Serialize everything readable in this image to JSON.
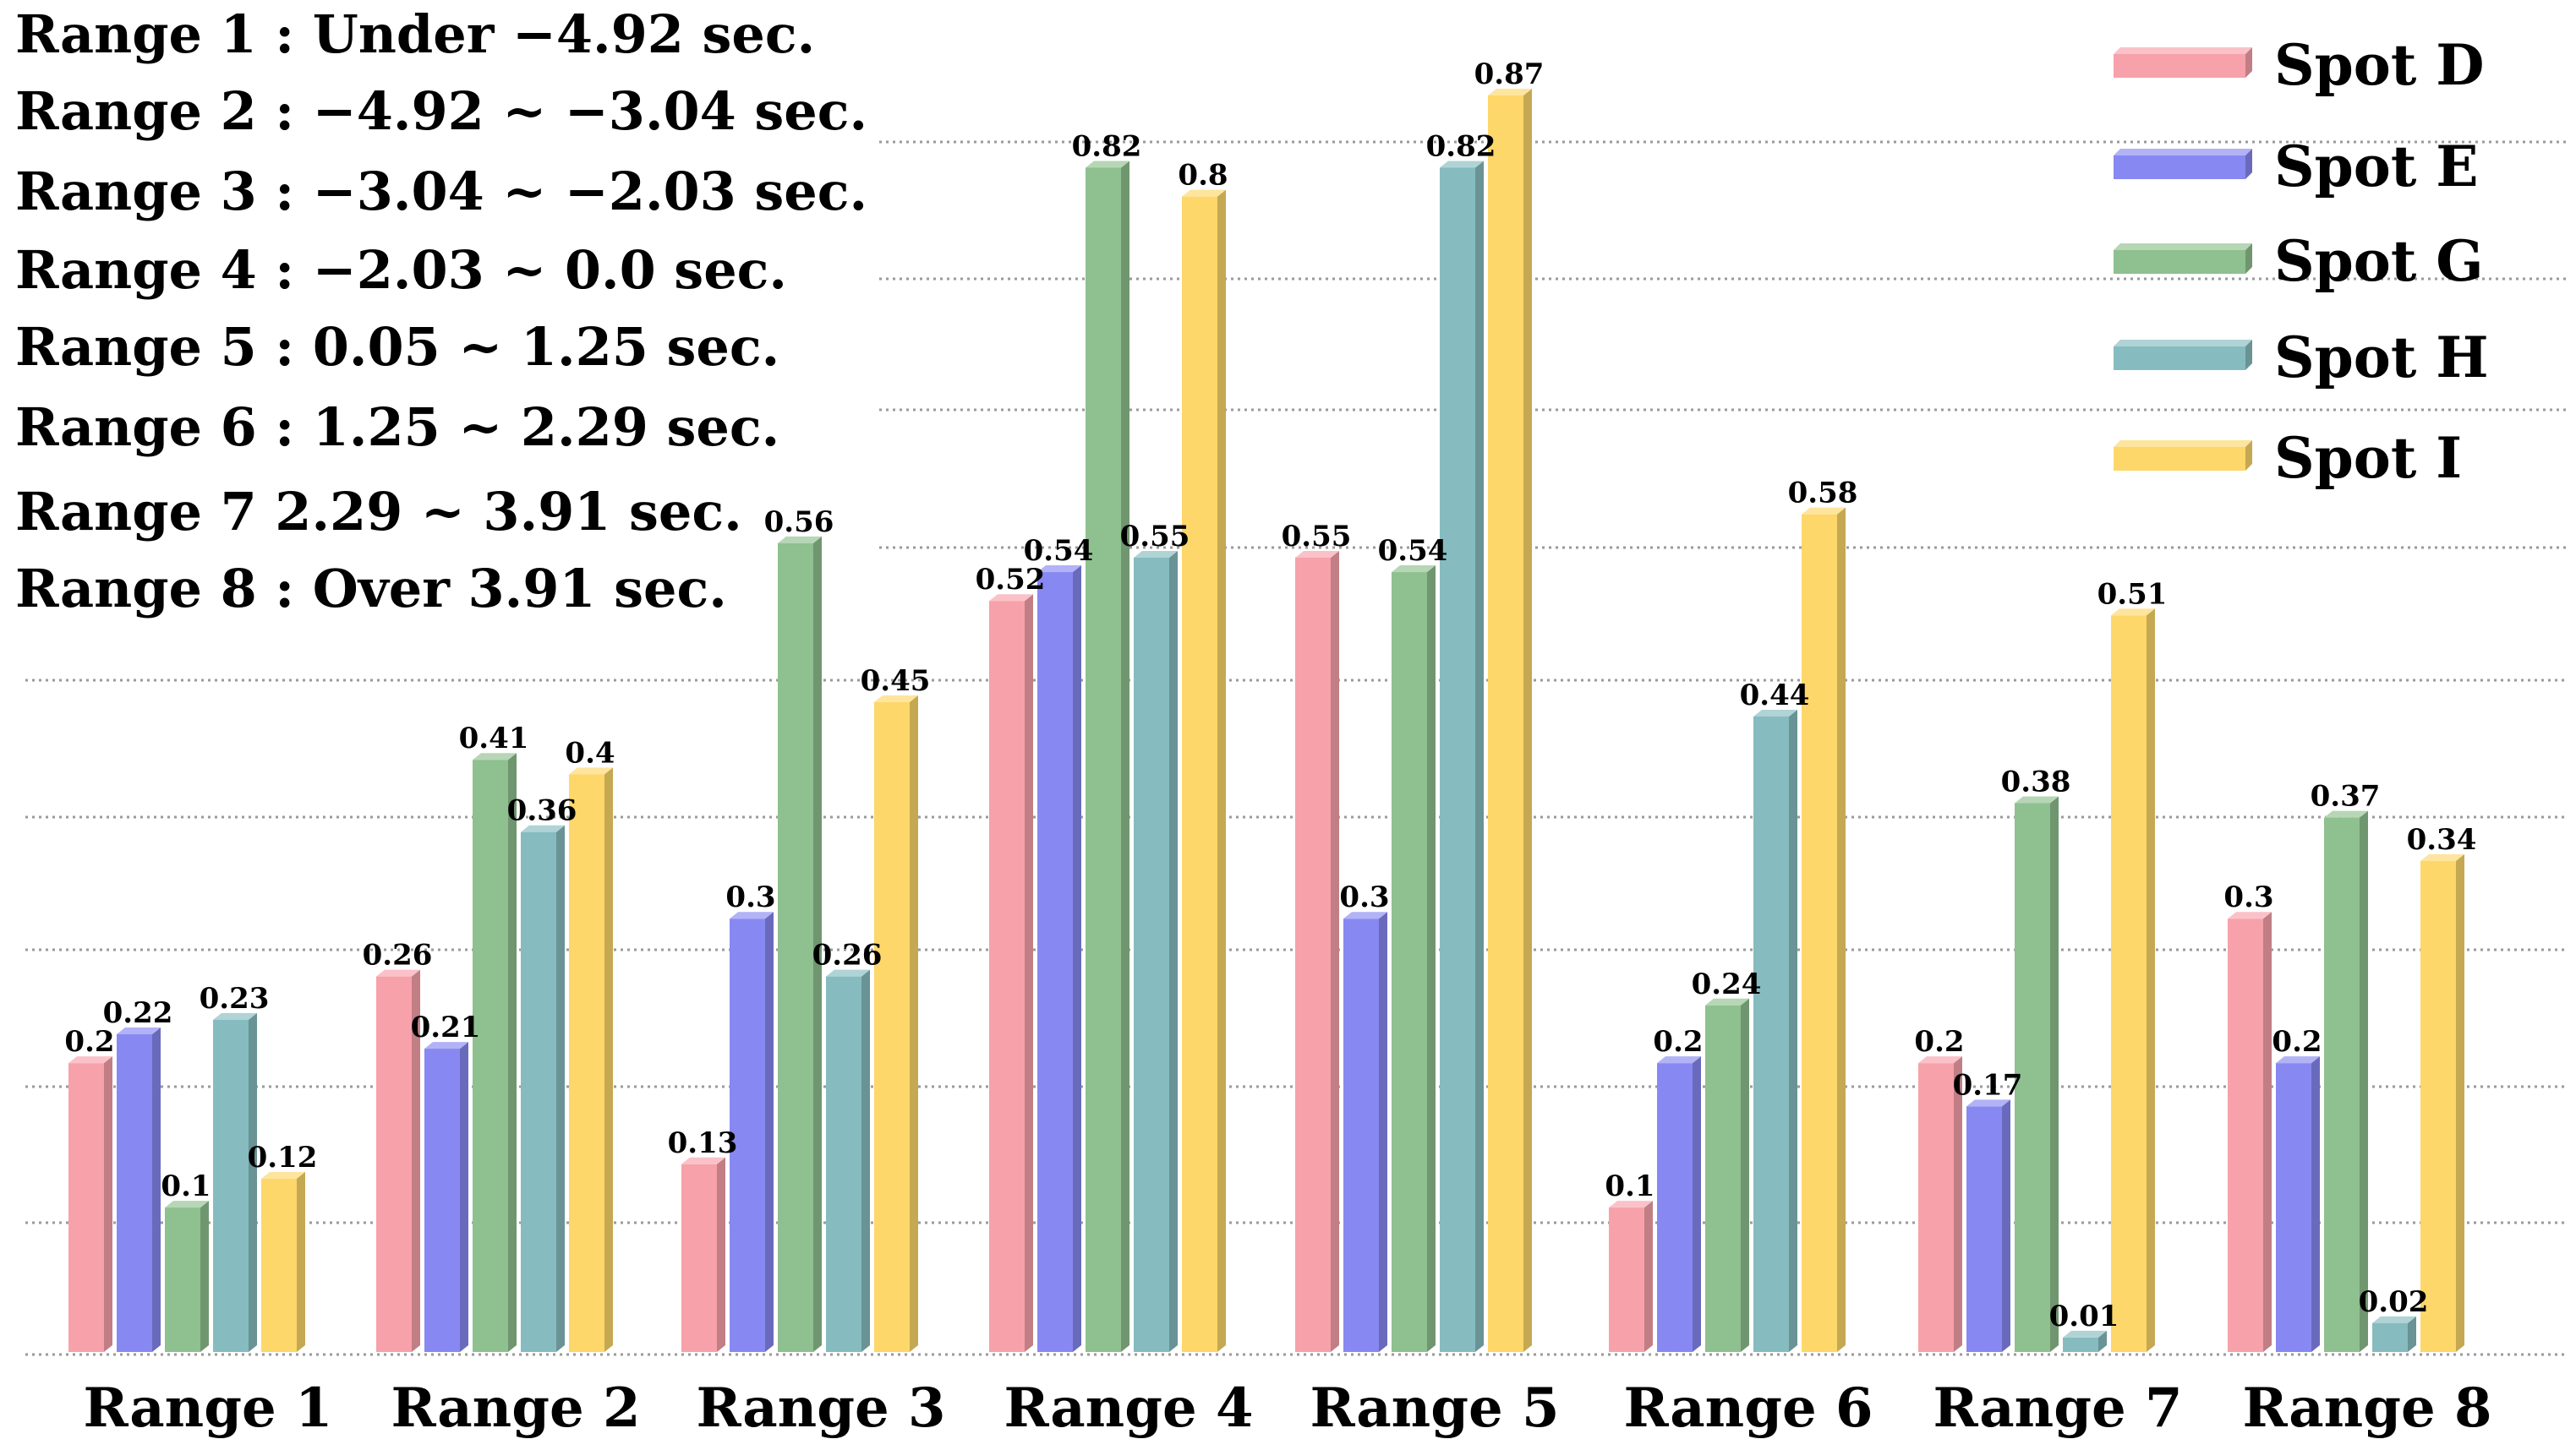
{
  "chart_data": {
    "type": "bar",
    "categories": [
      "Range 1",
      "Range 2",
      "Range 3",
      "Range 4",
      "Range 5",
      "Range 6",
      "Range 7",
      "Range 8"
    ],
    "series": [
      {
        "name": "Spot D",
        "color": "#f7a1aa",
        "values": [
          0.2,
          0.26,
          0.13,
          0.52,
          0.55,
          0.1,
          0.2,
          0.3
        ]
      },
      {
        "name": "Spot E",
        "color": "#8888f2",
        "values": [
          0.22,
          0.21,
          0.3,
          0.54,
          0.3,
          0.2,
          0.17,
          0.2
        ]
      },
      {
        "name": "Spot G",
        "color": "#8fc08f",
        "values": [
          0.1,
          0.41,
          0.56,
          0.82,
          0.54,
          0.24,
          0.38,
          0.37
        ]
      },
      {
        "name": "Spot H",
        "color": "#86bcbf",
        "values": [
          0.23,
          0.36,
          0.26,
          0.55,
          0.82,
          0.44,
          0.01,
          0.02
        ]
      },
      {
        "name": "Spot I",
        "color": "#fdd769",
        "values": [
          0.12,
          0.4,
          0.45,
          0.8,
          0.87,
          0.58,
          0.51,
          0.34
        ]
      }
    ],
    "ylim": [
      0,
      0.9
    ],
    "grid": true,
    "legend": "top-right",
    "annotations": [
      "Range 1 : Under −4.92 sec.",
      "Range 2 : −4.92 ~ −3.04 sec.",
      "Range 3 : −3.04 ~ −2.03 sec.",
      "Range 4 : −2.03 ~ 0.0 sec.",
      "Range 5 : 0.05 ~ 1.25 sec.",
      "Range 6 : 1.25 ~ 2.29 sec.",
      "Range 7 2.29 ~ 3.91 sec.",
      "Range 8 : Over 3.91 sec."
    ]
  }
}
